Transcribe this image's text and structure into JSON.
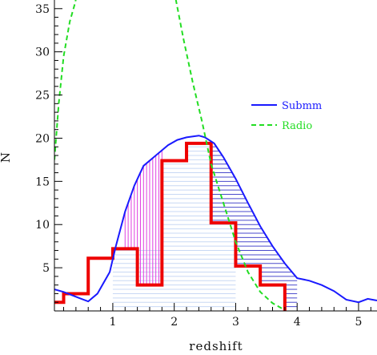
{
  "chart_data": {
    "type": "line",
    "xlabel": "redshift",
    "ylabel": "N",
    "xlim": [
      0.05,
      5.3
    ],
    "ylim": [
      0,
      36
    ],
    "xticks": [
      1,
      2,
      3,
      4,
      5
    ],
    "yticks": [
      5,
      10,
      15,
      20,
      25,
      30,
      35
    ],
    "legend": {
      "placement": "right",
      "entries": [
        "Submm",
        "Radio"
      ]
    },
    "colors": {
      "submm": "#1a1aff",
      "radio": "#22dd22",
      "histogram": "#ee0000",
      "hatch_blue": "#4a4acc",
      "hatch_magenta": "#e040e0",
      "hatch_light": "#c8d8f4"
    },
    "series": [
      {
        "name": "Submm",
        "style": "solid",
        "x": [
          0.05,
          0.2,
          0.45,
          0.6,
          0.75,
          0.95,
          1.05,
          1.2,
          1.35,
          1.5,
          1.7,
          1.9,
          2.05,
          2.2,
          2.4,
          2.5,
          2.65,
          2.8,
          3.0,
          3.2,
          3.4,
          3.6,
          3.8,
          4.0,
          4.2,
          4.4,
          4.6,
          4.8,
          5.0,
          5.15,
          5.3
        ],
        "y": [
          2.5,
          2.2,
          1.5,
          1.1,
          2.0,
          4.5,
          7.5,
          11.5,
          14.5,
          16.8,
          18.0,
          19.2,
          19.8,
          20.1,
          20.3,
          20.1,
          19.4,
          17.8,
          15.3,
          12.5,
          9.8,
          7.5,
          5.5,
          3.8,
          3.5,
          3.0,
          2.3,
          1.3,
          1.0,
          1.4,
          1.2
        ]
      },
      {
        "name": "Radio",
        "style": "dashed",
        "x": [
          0.05,
          0.12,
          0.2,
          0.3,
          0.38,
          0.43,
          2.0,
          2.15,
          2.3,
          2.45,
          2.6,
          2.8,
          3.0,
          3.2,
          3.4,
          3.6,
          3.75
        ],
        "y": [
          17.5,
          24.0,
          29.5,
          33.5,
          35.5,
          37.0,
          37.0,
          31.5,
          26.5,
          22.0,
          17.0,
          12.5,
          8.0,
          4.5,
          2.2,
          0.9,
          0.3
        ]
      },
      {
        "name": "",
        "style": "histogram",
        "bin_edges": [
          0.05,
          0.2,
          0.6,
          1.0,
          1.4,
          1.8,
          2.2,
          2.6,
          3.0,
          3.4,
          3.8
        ],
        "values": [
          1.0,
          2.0,
          6.1,
          7.2,
          3.0,
          17.4,
          19.4,
          10.2,
          5.2,
          3.0
        ]
      }
    ],
    "shaded_regions": [
      {
        "x": [
          1.2,
          1.8
        ],
        "style": "vertical-hatch",
        "color": "magenta"
      },
      {
        "x": [
          2.6,
          4.0
        ],
        "style": "horizontal-hatch",
        "color": "blue"
      }
    ]
  }
}
